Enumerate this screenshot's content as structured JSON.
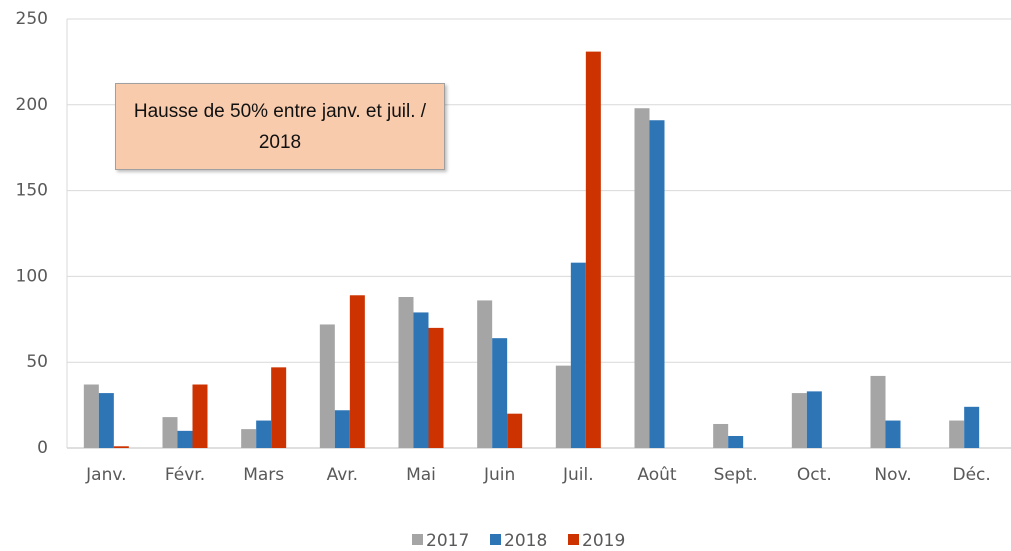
{
  "chart_data": {
    "type": "bar",
    "categories": [
      "Janv.",
      "Févr.",
      "Mars",
      "Avr.",
      "Mai",
      "Juin",
      "Juil.",
      "Août",
      "Sept.",
      "Oct.",
      "Nov.",
      "Déc."
    ],
    "series": [
      {
        "name": "2017",
        "color": "#a5a5a5",
        "values": [
          37,
          18,
          11,
          72,
          88,
          86,
          48,
          198,
          14,
          32,
          42,
          16
        ]
      },
      {
        "name": "2018",
        "color": "#2e75b6",
        "values": [
          32,
          10,
          16,
          22,
          79,
          64,
          108,
          191,
          7,
          33,
          16,
          24
        ]
      },
      {
        "name": "2019",
        "color": "#cc3300",
        "values": [
          1,
          37,
          47,
          89,
          70,
          20,
          231,
          null,
          null,
          null,
          null,
          null
        ]
      }
    ],
    "ylim": [
      0,
      250
    ],
    "yticks": [
      0,
      50,
      100,
      150,
      200,
      250
    ],
    "grid": true,
    "annotation": "Hausse de 50% entre janv. et juil. / 2018",
    "legend": "bottom"
  }
}
